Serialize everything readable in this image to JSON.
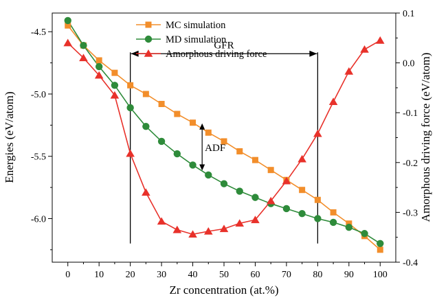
{
  "chart_data": {
    "type": "line",
    "title": "",
    "xlabel": "Zr concentration (at.%)",
    "ylabel_left": "Energies (eV/atom)",
    "ylabel_right": "Amorphous driving force (eV/atom)",
    "xlim": [
      -5,
      105
    ],
    "ylim_left": [
      -6.35,
      -4.35
    ],
    "ylim_right": [
      -0.4,
      0.1
    ],
    "x_ticks": [
      0,
      10,
      20,
      30,
      40,
      50,
      60,
      70,
      80,
      90,
      100
    ],
    "x_tick_labels": [
      "0",
      "10",
      "20",
      "30",
      "40",
      "50",
      "60",
      "70",
      "80",
      "90",
      "100"
    ],
    "y_left_ticks": [
      -6.0,
      -5.5,
      -5.0,
      -4.5
    ],
    "y_left_tick_labels": [
      "-6.0",
      "-5.5",
      "-5.0",
      "-4.5"
    ],
    "y_right_ticks": [
      -0.4,
      -0.3,
      -0.2,
      -0.1,
      0.0,
      0.1
    ],
    "y_right_tick_labels": [
      "-0.4",
      "-0.3",
      "-0.2",
      "-0.1",
      "0.0",
      "0.1"
    ],
    "grid": false,
    "legend_position": "top-center",
    "x": [
      0,
      5,
      10,
      15,
      20,
      25,
      30,
      35,
      40,
      45,
      50,
      55,
      60,
      65,
      70,
      75,
      80,
      85,
      90,
      95,
      100
    ],
    "series": [
      {
        "name": "MC simulation",
        "axis": "left",
        "marker": "square",
        "color": "#F28E2B",
        "values": [
          -4.45,
          -4.61,
          -4.73,
          -4.83,
          -4.93,
          -5.0,
          -5.08,
          -5.16,
          -5.23,
          -5.31,
          -5.38,
          -5.46,
          -5.53,
          -5.61,
          -5.69,
          -5.77,
          -5.85,
          -5.95,
          -6.04,
          -6.14,
          -6.25
        ]
      },
      {
        "name": "MD simulation",
        "axis": "left",
        "marker": "circle",
        "color": "#2E8B3A",
        "values": [
          -4.41,
          -4.61,
          -4.78,
          -4.93,
          -5.11,
          -5.26,
          -5.38,
          -5.48,
          -5.57,
          -5.65,
          -5.72,
          -5.78,
          -5.83,
          -5.88,
          -5.92,
          -5.96,
          -6.0,
          -6.03,
          -6.07,
          -6.12,
          -6.2
        ]
      },
      {
        "name": "Amorphous driving force",
        "axis": "right",
        "marker": "triangle",
        "color": "#E8312A",
        "values": [
          0.04,
          0.01,
          -0.025,
          -0.065,
          -0.182,
          -0.26,
          -0.318,
          -0.335,
          -0.344,
          -0.338,
          -0.333,
          -0.322,
          -0.315,
          -0.277,
          -0.237,
          -0.193,
          -0.142,
          -0.078,
          -0.017,
          0.027,
          0.045
        ]
      }
    ],
    "annotations": {
      "gfr_label": "GFR",
      "gfr_range": [
        20,
        80
      ],
      "gfr_level": -4.93,
      "adf_label": "ADF",
      "adf_x": 43,
      "adf_from": -5.23,
      "adf_to": -5.62,
      "vlines": [
        20,
        80
      ],
      "vline_bottom": -6.2
    }
  }
}
